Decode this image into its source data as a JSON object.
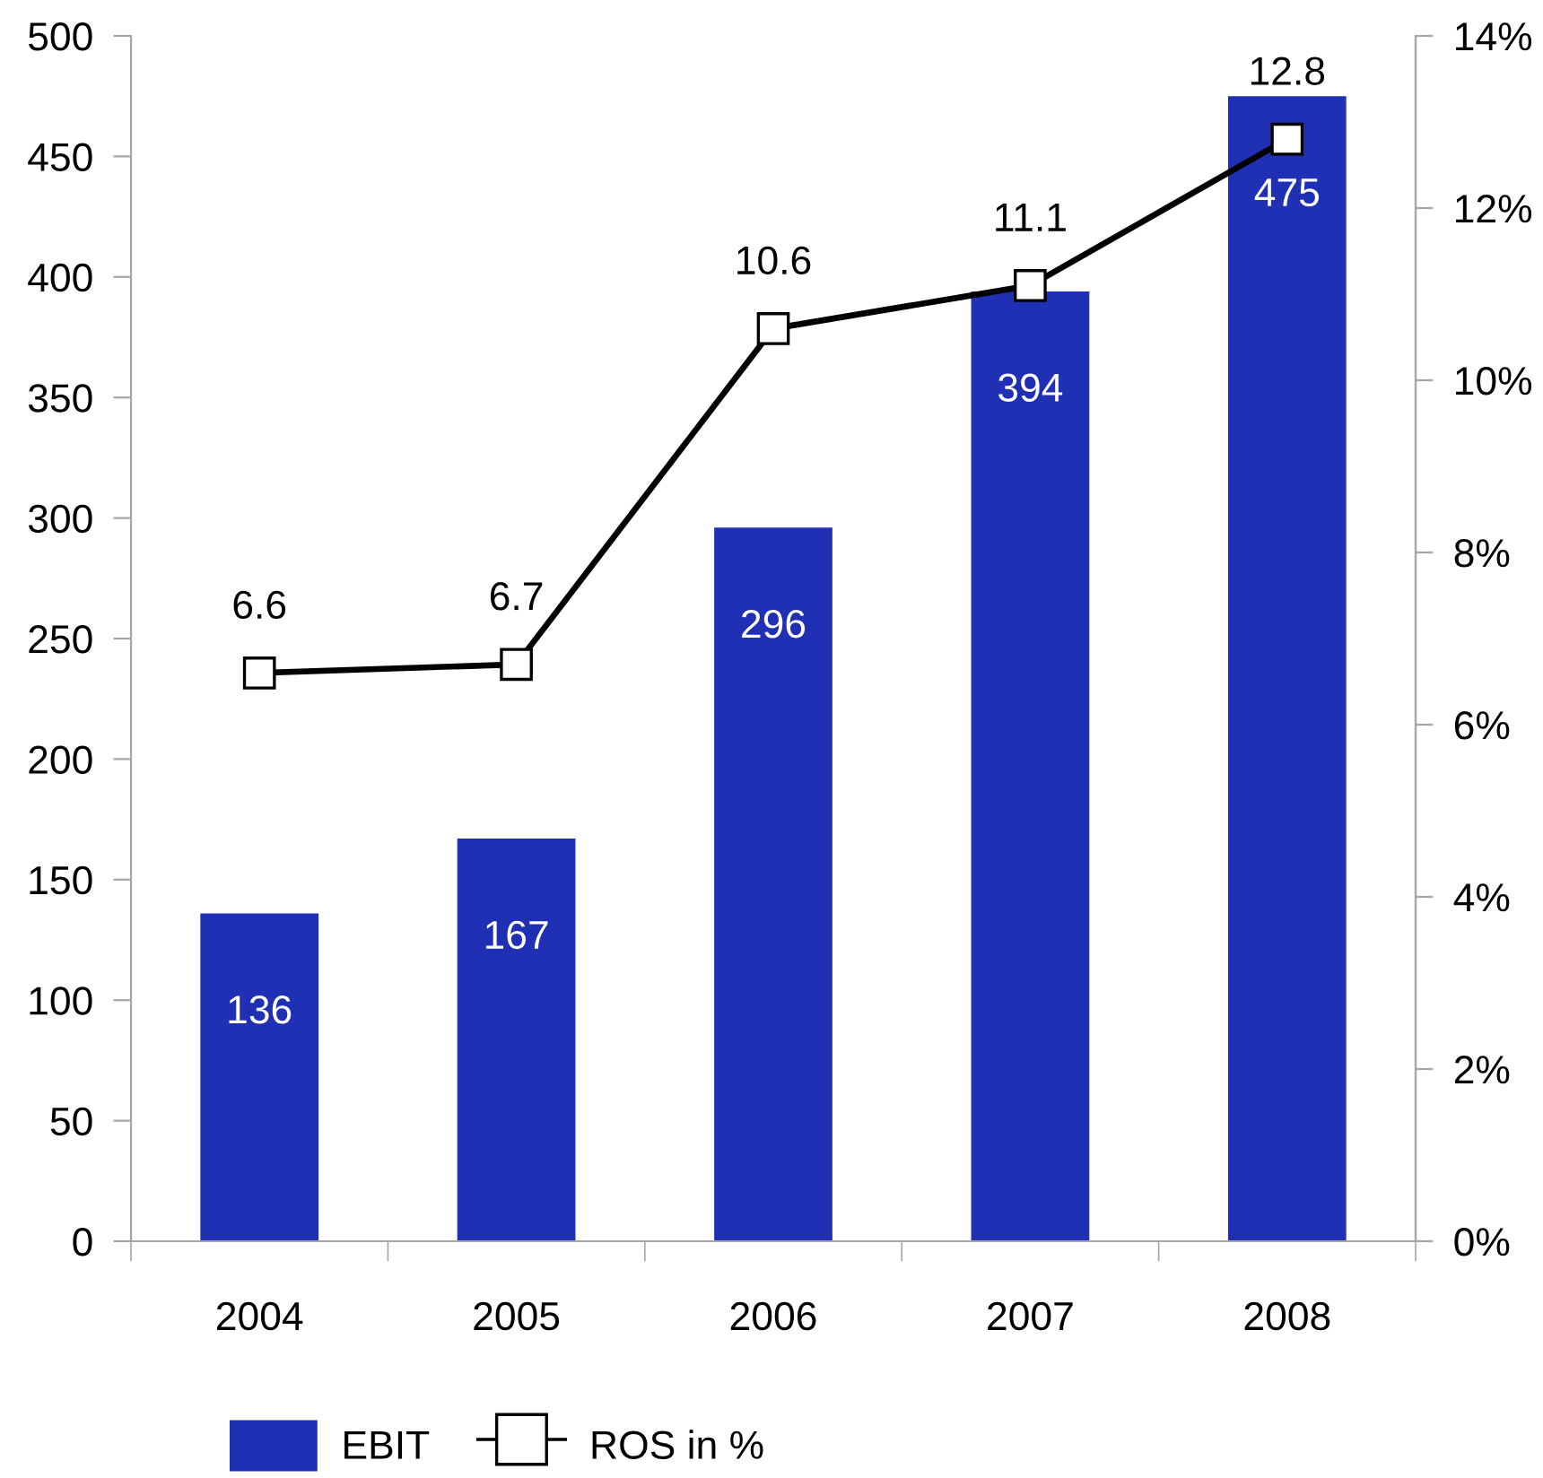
{
  "chart_data": {
    "type": "bar",
    "categories": [
      "2004",
      "2005",
      "2006",
      "2007",
      "2008"
    ],
    "series": [
      {
        "name": "EBIT",
        "color": "#2030b4",
        "values": [
          136,
          167,
          296,
          394,
          475
        ]
      },
      {
        "name": "ROS in %",
        "type": "line",
        "axis": "y2",
        "color": "#000000",
        "values": [
          6.6,
          6.7,
          10.6,
          11.1,
          12.8
        ]
      }
    ],
    "ylim": [
      0,
      500
    ],
    "yticks": [
      0,
      50,
      100,
      150,
      200,
      250,
      300,
      350,
      400,
      450,
      500
    ],
    "y2lim": [
      0,
      14
    ],
    "y2ticks": [
      {
        "value": 0,
        "label": "0%"
      },
      {
        "value": 2,
        "label": "2%"
      },
      {
        "value": 4,
        "label": "4%"
      },
      {
        "value": 6,
        "label": "6%"
      },
      {
        "value": 8,
        "label": "8%"
      },
      {
        "value": 10,
        "label": "10%"
      },
      {
        "value": 12,
        "label": "12%"
      },
      {
        "value": 14,
        "label": "14%"
      }
    ],
    "marker": "square",
    "line_style": "solid",
    "data_labels": true,
    "legend": "bottom"
  }
}
